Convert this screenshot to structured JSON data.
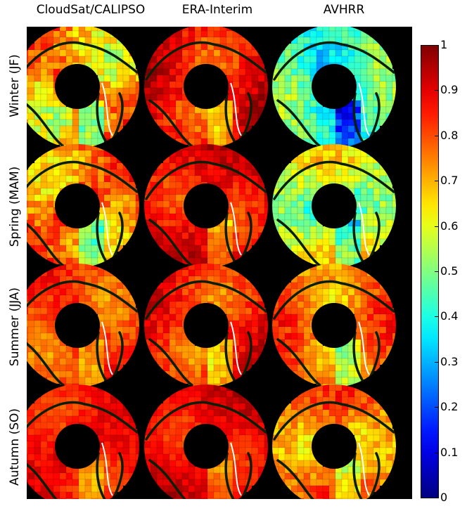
{
  "chart_data": {
    "type": "heatmap",
    "column_titles": [
      "CloudSat/CALIPSO",
      "ERA-Interim",
      "AVHRR"
    ],
    "row_titles": [
      "Winter (JF)",
      "Spring (MAM)",
      "Summer (JJA)",
      "Autumn (SO)"
    ],
    "colorbar": {
      "range": [
        0,
        1
      ],
      "ticks": [
        "1",
        "0.9",
        "0.8",
        "0.7",
        "0.6",
        "0.5",
        "0.4",
        "0.3",
        "0.2",
        "0.1",
        "0"
      ],
      "colormap": [
        "#00008f",
        "#0000ff",
        "#00ffff",
        "#ffff00",
        "#ff0000",
        "#800000"
      ]
    },
    "panels": [
      {
        "row": "Winter (JF)",
        "column": "CloudSat/CALIPSO",
        "mean": 0.72,
        "spread": 0.18
      },
      {
        "row": "Winter (JF)",
        "column": "ERA-Interim",
        "mean": 0.86,
        "spread": 0.12
      },
      {
        "row": "Winter (JF)",
        "column": "AVHRR",
        "mean": 0.42,
        "spread": 0.15
      },
      {
        "row": "Spring (MAM)",
        "column": "CloudSat/CALIPSO",
        "mean": 0.76,
        "spread": 0.15
      },
      {
        "row": "Spring (MAM)",
        "column": "ERA-Interim",
        "mean": 0.87,
        "spread": 0.1
      },
      {
        "row": "Spring (MAM)",
        "column": "AVHRR",
        "mean": 0.55,
        "spread": 0.15
      },
      {
        "row": "Summer (JJA)",
        "column": "CloudSat/CALIPSO",
        "mean": 0.82,
        "spread": 0.1
      },
      {
        "row": "Summer (JJA)",
        "column": "ERA-Interim",
        "mean": 0.83,
        "spread": 0.11
      },
      {
        "row": "Summer (JJA)",
        "column": "AVHRR",
        "mean": 0.74,
        "spread": 0.12
      },
      {
        "row": "Autumn (SO)",
        "column": "CloudSat/CALIPSO",
        "mean": 0.87,
        "spread": 0.08
      },
      {
        "row": "Autumn (SO)",
        "column": "ERA-Interim",
        "mean": 0.88,
        "spread": 0.08
      },
      {
        "row": "Autumn (SO)",
        "column": "AVHRR",
        "mean": 0.72,
        "spread": 0.13
      }
    ]
  }
}
